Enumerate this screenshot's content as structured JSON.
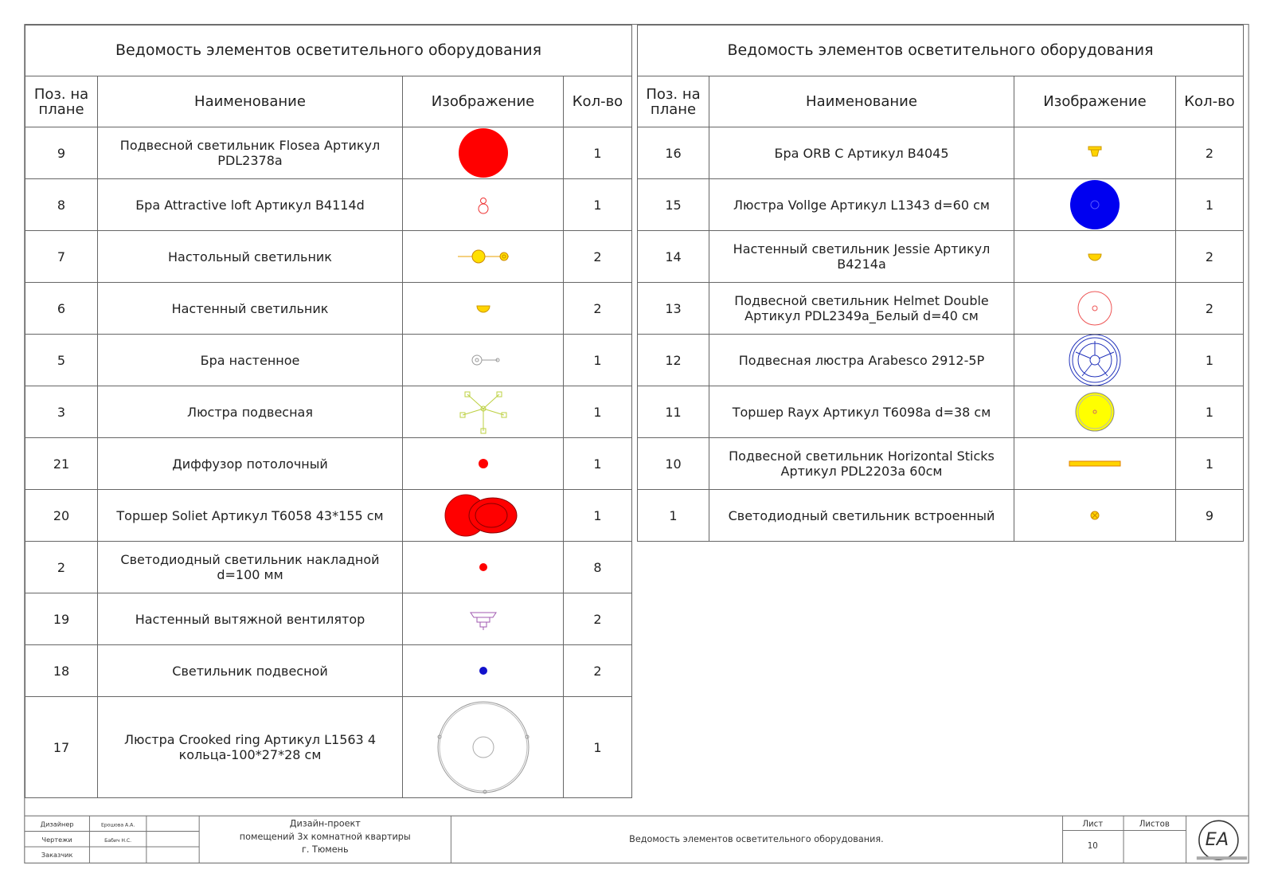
{
  "tables": [
    {
      "title": "Ведомость элементов осветительного оборудования",
      "header": [
        "Поз. на плане",
        "Наименование",
        "Изображение",
        "Кол-во"
      ],
      "rows": [
        [
          9,
          "Подвесной светильник Flosea  Артикул PDL2378a",
          1
        ],
        [
          8,
          "Бра Attractive loft Артикул B4114d",
          1
        ],
        [
          7,
          "Настольный светильник",
          2
        ],
        [
          6,
          "Настенный светильник",
          2
        ],
        [
          5,
          "Бра настенное",
          1
        ],
        [
          3,
          "Люстра подвесная",
          1
        ],
        [
          21,
          "Диффузор потолочный",
          1
        ],
        [
          20,
          "Торшер Soliet  Артикул T6058  43*155 см",
          1
        ],
        [
          2,
          "Светодиодный светильник накладной d=100 мм",
          8
        ],
        [
          19,
          "Настенный вытяжной вентилятор",
          2
        ],
        [
          18,
          "Светильник подвесной",
          2
        ],
        [
          17,
          "Люстра Crooked ring  Артикул L1563  4 кольца-100*27*28 см",
          1
        ]
      ]
    },
    {
      "title": "Ведомость элементов осветительного оборудования",
      "header": [
        "Поз. на плане",
        "Наименование",
        "Изображение",
        "Кол-во"
      ],
      "rows": [
        [
          16,
          "Бра ORB C Артикул B4045",
          2
        ],
        [
          15,
          "Люстра Vollge  Артикул L1343 d=60 см",
          1
        ],
        [
          14,
          "Настенный светильник Jessie Артикул B4214a",
          2
        ],
        [
          13,
          "Подвесной светильник Helmet Double   Артикул PDL2349a_Белый d=40 см",
          2
        ],
        [
          12,
          "Подвесная люстра Arabesco 2912-5P",
          1
        ],
        [
          11,
          "Торшер Rayx   Артикул T6098a d=38 см",
          1
        ],
        [
          10,
          "Подвесной светильник Horizontal Sticks Артикул PDL2203a 60см",
          1
        ],
        [
          1,
          "Светодиодный светильник встроенный",
          9
        ]
      ]
    }
  ],
  "stamp": {
    "roles": [
      [
        "Дизайнер",
        "Ерошова А.А."
      ],
      [
        "Чертежи",
        "Бабич Н.С."
      ],
      [
        "Заказчик",
        ""
      ]
    ],
    "project": [
      "Дизайн-проект",
      "помещений 3х комнатной квартиры",
      "г. Тюмень"
    ],
    "sheet_title": "Ведомость элементов осветительного оборудования.",
    "sheet_label": "Лист",
    "sheets_label": "Листов",
    "sheet": 10,
    "logo": "EA"
  }
}
